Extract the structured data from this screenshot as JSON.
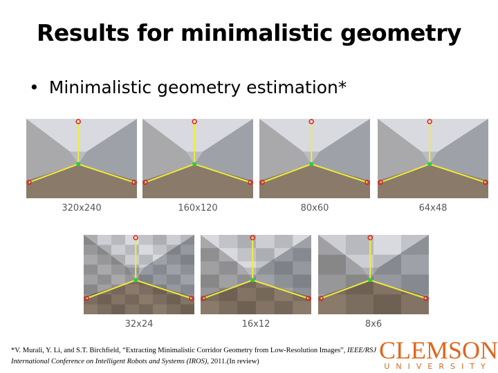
{
  "title": "Results for minimalistic geometry",
  "bullet": "Minimalistic geometry estimation*",
  "images": [
    {
      "label": "320x240"
    },
    {
      "label": "160x120"
    },
    {
      "label": "80x60"
    },
    {
      "label": "64x48"
    },
    {
      "label": "32x24"
    },
    {
      "label": "16x12"
    },
    {
      "label": "8x6"
    }
  ],
  "footnote": {
    "authors": "*V. Murali, Y. Li, and S.T. Birchfield, “Extracting Minimalistic Corridor Geometry from Low-Resolution Images”,",
    "venue": "IEEE/RSJ International Conference on Intelligent Robots and Systems (IROS),",
    "year": "2011.(In review)"
  },
  "logo": {
    "name": "CLEMSON",
    "sub": "UNIVERSITY"
  }
}
